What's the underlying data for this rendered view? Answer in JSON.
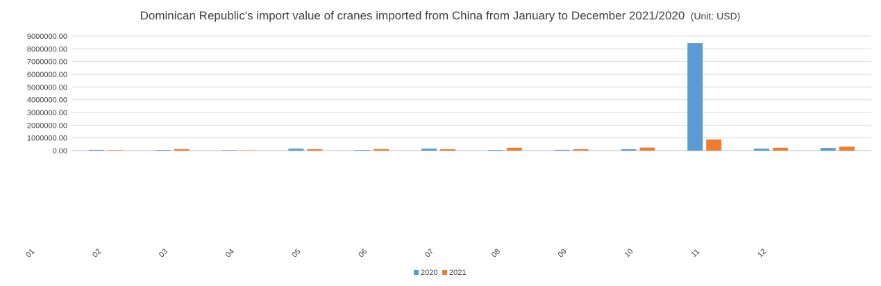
{
  "chart_data": {
    "type": "bar",
    "title": "Dominican Republic's import value of cranes imported from China from January to December 2021/2020",
    "subtitle": "(Unit: USD)",
    "xlabel": "",
    "ylabel": "",
    "categories": [
      "01",
      "02",
      "03",
      "04",
      "05",
      "06",
      "07",
      "08",
      "09",
      "10",
      "11",
      "12"
    ],
    "ylim": [
      0,
      9000000
    ],
    "yticks": [
      "0.00",
      "1000000.00",
      "2000000.00",
      "3000000.00",
      "4000000.00",
      "5000000.00",
      "6000000.00",
      "7000000.00",
      "8000000.00",
      "9000000.00"
    ],
    "grid": true,
    "legend_position": "bottom",
    "series": [
      {
        "name": "2020",
        "color": "#5b9bd5",
        "values": [
          60000,
          50000,
          40000,
          160000,
          50000,
          160000,
          50000,
          60000,
          110000,
          8450000,
          160000,
          210000
        ]
      },
      {
        "name": "2021",
        "color": "#ed7d31",
        "values": [
          40000,
          120000,
          30000,
          110000,
          120000,
          110000,
          230000,
          110000,
          240000,
          880000,
          230000,
          310000
        ]
      }
    ]
  }
}
